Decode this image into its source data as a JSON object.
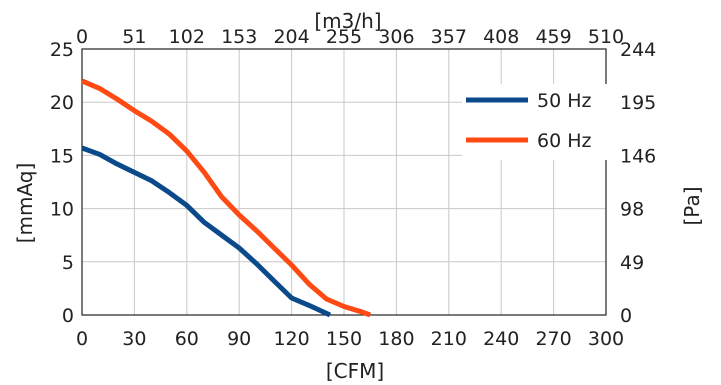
{
  "chart_data": {
    "type": "line",
    "xlabel": "[CFM]",
    "ylabel": "[mmAq]",
    "x2label": "[m3/h]",
    "y2label": "[Pa]",
    "xlim": [
      0,
      300
    ],
    "ylim": [
      0,
      25
    ],
    "x_ticks": [
      "0",
      "30",
      "60",
      "90",
      "120",
      "150",
      "180",
      "210",
      "240",
      "270",
      "300"
    ],
    "y_ticks": [
      "0",
      "5",
      "10",
      "15",
      "20",
      "25"
    ],
    "x2_ticks": [
      "0",
      "51",
      "102",
      "153",
      "204",
      "255",
      "306",
      "357",
      "408",
      "459",
      "510"
    ],
    "y2_ticks": [
      "0",
      "49",
      "98",
      "146",
      "195",
      "244"
    ],
    "grid": true,
    "legend_position": "top-right",
    "series": [
      {
        "name": "50 Hz",
        "color": "#0a4a8a",
        "x": [
          0,
          10,
          20,
          30,
          40,
          50,
          60,
          70,
          80,
          90,
          100,
          110,
          120,
          130,
          142
        ],
        "y": [
          15.7,
          15.1,
          14.2,
          13.4,
          12.6,
          11.5,
          10.3,
          8.7,
          7.5,
          6.3,
          4.8,
          3.2,
          1.6,
          0.9,
          0
        ]
      },
      {
        "name": "60 Hz",
        "color": "#ff4a14",
        "x": [
          0,
          10,
          20,
          30,
          40,
          50,
          60,
          70,
          80,
          90,
          100,
          110,
          120,
          130,
          140,
          150,
          160,
          165
        ],
        "y": [
          22.0,
          21.3,
          20.3,
          19.2,
          18.2,
          17.0,
          15.4,
          13.4,
          11.1,
          9.4,
          7.9,
          6.3,
          4.7,
          2.9,
          1.5,
          0.8,
          0.3,
          0
        ]
      }
    ]
  }
}
